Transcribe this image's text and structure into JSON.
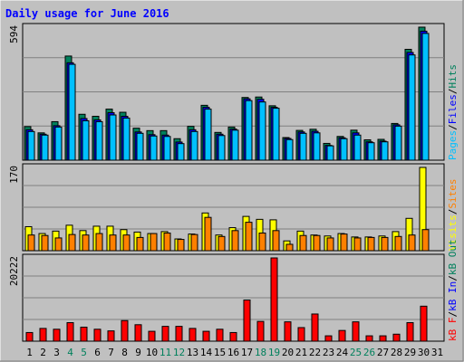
{
  "title": "Daily usage for June 2016",
  "colors": {
    "background": "#c0c0c0",
    "title": "#0000ff",
    "hits": "#00805c",
    "files": "#0000ff",
    "pages": "#00c0ff",
    "visits": "#ffff00",
    "sites": "#ff8000",
    "kb_in": "#0000ff",
    "kb_out": "#00805c",
    "kb_f": "#ff0000"
  },
  "chart_data": [
    {
      "type": "bar",
      "panel": "hits-files-pages",
      "ymax_label": "594",
      "ylim": [
        0,
        594
      ],
      "right_label": [
        "Pages",
        "/",
        "Files",
        "/",
        "Hits"
      ],
      "categories": [
        "1",
        "2",
        "3",
        "4",
        "5",
        "6",
        "7",
        "8",
        "9",
        "10",
        "11",
        "12",
        "13",
        "14",
        "15",
        "16",
        "17",
        "18",
        "19",
        "20",
        "21",
        "22",
        "23",
        "24",
        "25",
        "26",
        "27",
        "28",
        "29",
        "30",
        "31"
      ],
      "series": [
        {
          "name": "Hits",
          "values": [
            150,
            122,
            172,
            465,
            205,
            196,
            228,
            214,
            143,
            132,
            132,
            96,
            151,
            245,
            124,
            148,
            280,
            282,
            243,
            101,
            133,
            138,
            75,
            106,
            134,
            91,
            93,
            164,
            495,
            594,
            0
          ]
        },
        {
          "name": "Files",
          "values": [
            136,
            116,
            154,
            435,
            186,
            180,
            212,
            196,
            126,
            114,
            112,
            81,
            136,
            236,
            116,
            139,
            274,
            272,
            236,
            97,
            126,
            129,
            66,
            100,
            122,
            82,
            85,
            158,
            481,
            576,
            0
          ]
        },
        {
          "name": "Pages",
          "values": [
            128,
            112,
            148,
            428,
            176,
            172,
            202,
            188,
            120,
            108,
            106,
            74,
            128,
            228,
            110,
            134,
            266,
            260,
            232,
            92,
            120,
            122,
            64,
            96,
            112,
            78,
            82,
            152,
            470,
            566,
            0
          ]
        }
      ]
    },
    {
      "type": "bar",
      "panel": "visits-sites",
      "ymax_label": "170",
      "ylim": [
        0,
        170
      ],
      "right_label": [
        "Visits",
        "/",
        "Sites"
      ],
      "categories": [
        "1",
        "2",
        "3",
        "4",
        "5",
        "6",
        "7",
        "8",
        "9",
        "10",
        "11",
        "12",
        "13",
        "14",
        "15",
        "16",
        "17",
        "18",
        "19",
        "20",
        "21",
        "22",
        "23",
        "24",
        "25",
        "26",
        "27",
        "28",
        "29",
        "30",
        "31"
      ],
      "series": [
        {
          "name": "Visits",
          "values": [
            49,
            35,
            40,
            52,
            41,
            50,
            50,
            43,
            38,
            35,
            39,
            24,
            34,
            77,
            32,
            47,
            70,
            64,
            63,
            20,
            40,
            32,
            30,
            35,
            28,
            28,
            30,
            39,
            66,
            170,
            0
          ]
        },
        {
          "name": "Sites",
          "values": [
            32,
            31,
            26,
            33,
            32,
            35,
            32,
            32,
            27,
            35,
            36,
            23,
            33,
            68,
            29,
            41,
            58,
            36,
            41,
            13,
            31,
            31,
            26,
            34,
            26,
            27,
            27,
            29,
            32,
            43,
            0
          ]
        }
      ]
    },
    {
      "type": "bar",
      "panel": "kb",
      "ymax_label": "20222",
      "ylim": [
        0,
        20222
      ],
      "right_label": [
        "kB F",
        "/",
        "kB In",
        "/",
        "kB Out"
      ],
      "categories": [
        "1",
        "2",
        "3",
        "4",
        "5",
        "6",
        "7",
        "8",
        "9",
        "10",
        "11",
        "12",
        "13",
        "14",
        "15",
        "16",
        "17",
        "18",
        "19",
        "20",
        "21",
        "22",
        "23",
        "24",
        "25",
        "26",
        "27",
        "28",
        "29",
        "30",
        "31"
      ],
      "series": [
        {
          "name": "kB F",
          "values": [
            2100,
            3100,
            2900,
            4500,
            3400,
            2900,
            2500,
            5000,
            4000,
            2400,
            3600,
            3600,
            3100,
            2400,
            2900,
            2100,
            10000,
            4800,
            20222,
            4700,
            3300,
            6600,
            1300,
            2600,
            4700,
            1300,
            1300,
            1700,
            4500,
            8500,
            0
          ]
        }
      ]
    }
  ],
  "x_label_colors": {
    "weekend_days": [
      "4",
      "5",
      "11",
      "12",
      "18",
      "19",
      "25",
      "26"
    ]
  }
}
